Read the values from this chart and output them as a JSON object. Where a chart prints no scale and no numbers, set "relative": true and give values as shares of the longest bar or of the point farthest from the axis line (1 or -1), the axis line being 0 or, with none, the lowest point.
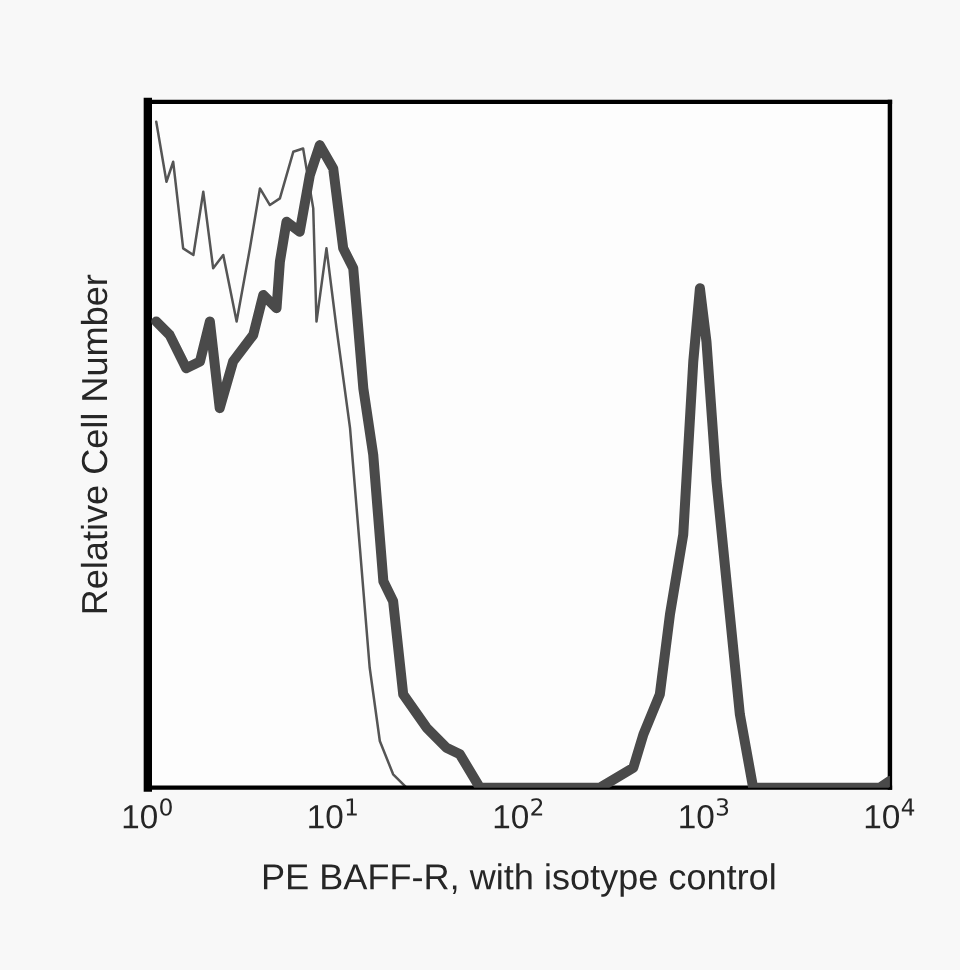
{
  "chart_data": {
    "type": "line",
    "relative": true,
    "log": "x",
    "grid": false,
    "legend": false,
    "marker": "none",
    "line_style": "solid",
    "xlabel": "PE BAFF-R, with isotype control",
    "ylabel": "Relative Cell Number",
    "xlim": [
      1,
      10000
    ],
    "xticks": [
      {
        "value": 1,
        "label": "10$^{0}$"
      },
      {
        "value": 10,
        "label": "10$^{1}$"
      },
      {
        "value": 100,
        "label": "10$^{2}$"
      },
      {
        "value": 1000,
        "label": "10$^{3}$"
      },
      {
        "value": 10000,
        "label": "10$^{4}$"
      }
    ],
    "series": [
      {
        "color": "#4a4a4a",
        "x": [
          1.11,
          1.31,
          1.61,
          1.91,
          2.16,
          2.44,
          2.88,
          3.7,
          4.19,
          4.94,
          5.15,
          5.59,
          6.59,
          7.47,
          8.45,
          9.98,
          11.3,
          12.8,
          14.5,
          16.4,
          18.6,
          21.0,
          23.8,
          31.8,
          40.7,
          48.1,
          61.6,
          72.8,
          130,
          274,
          414,
          469,
          575,
          652,
          769,
          871,
          946,
          1026,
          1162,
          1371,
          1553,
          1831,
          2160,
          8830,
          10000
        ],
        "values": [
          0.7,
          0.68,
          0.63,
          0.64,
          0.7,
          0.57,
          0.64,
          0.68,
          0.74,
          0.72,
          0.79,
          0.85,
          0.835,
          0.92,
          0.965,
          0.93,
          0.81,
          0.78,
          0.6,
          0.5,
          0.31,
          0.28,
          0.14,
          0.09,
          0.06,
          0.05,
          0.0,
          0.0,
          0.0,
          0.0,
          0.03,
          0.08,
          0.14,
          0.26,
          0.38,
          0.64,
          0.75,
          0.67,
          0.46,
          0.26,
          0.11,
          0.0,
          0.0,
          0.0,
          0.01
        ]
      },
      {
        "color": "#555555",
        "x": [
          1.11,
          1.26,
          1.37,
          1.55,
          1.76,
          1.99,
          2.25,
          2.55,
          3.01,
          3.55,
          4.02,
          4.55,
          5.15,
          6.08,
          6.87,
          7.79,
          8.11,
          9.18,
          10.4,
          12.3,
          13.9,
          15.7,
          17.8,
          21.0,
          24.8,
          34.5
        ],
        "values": [
          1.0,
          0.91,
          0.94,
          0.81,
          0.8,
          0.895,
          0.78,
          0.8,
          0.7,
          0.81,
          0.9,
          0.875,
          0.885,
          0.955,
          0.96,
          0.87,
          0.7,
          0.81,
          0.69,
          0.54,
          0.36,
          0.18,
          0.07,
          0.02,
          0.0,
          0.0
        ]
      }
    ]
  }
}
